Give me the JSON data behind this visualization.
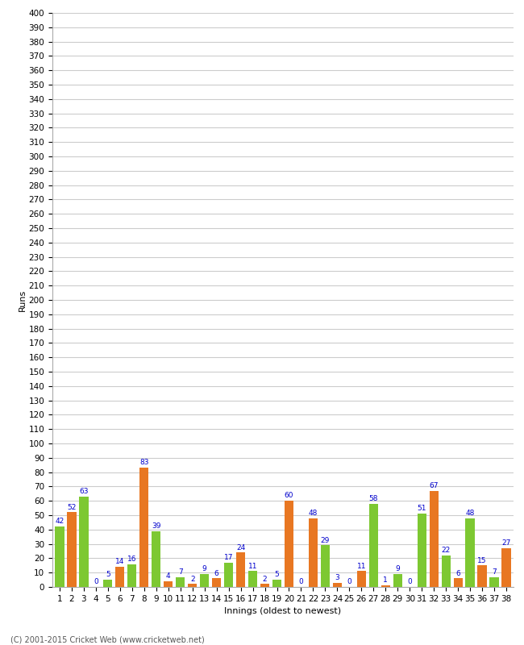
{
  "innings": [
    1,
    2,
    3,
    4,
    5,
    6,
    7,
    8,
    9,
    10,
    11,
    12,
    13,
    14,
    15,
    16,
    17,
    18,
    19,
    20,
    21,
    22,
    23,
    24,
    25,
    26,
    27,
    28,
    29,
    30,
    31,
    32,
    33,
    34,
    35,
    36,
    37,
    38
  ],
  "values": [
    42,
    52,
    63,
    0,
    5,
    14,
    16,
    83,
    39,
    4,
    7,
    2,
    9,
    6,
    17,
    24,
    11,
    2,
    5,
    60,
    0,
    48,
    29,
    3,
    0,
    11,
    58,
    1,
    9,
    0,
    51,
    67,
    22,
    6,
    48,
    15,
    7,
    27
  ],
  "colors": [
    "#7dc832",
    "#e87722",
    "#7dc832",
    "#e87722",
    "#7dc832",
    "#e87722",
    "#7dc832",
    "#e87722",
    "#7dc832",
    "#e87722",
    "#7dc832",
    "#e87722",
    "#7dc832",
    "#e87722",
    "#7dc832",
    "#e87722",
    "#7dc832",
    "#e87722",
    "#7dc832",
    "#e87722",
    "#7dc832",
    "#e87722",
    "#7dc832",
    "#e87722",
    "#7dc832",
    "#e87722",
    "#7dc832",
    "#e87722",
    "#7dc832",
    "#e87722",
    "#7dc832",
    "#e87722",
    "#7dc832",
    "#e87722",
    "#7dc832",
    "#e87722",
    "#7dc832",
    "#e87722"
  ],
  "xlabel": "Innings (oldest to newest)",
  "ylabel": "Runs",
  "ylim": [
    0,
    400
  ],
  "ytick_step": 10,
  "footer": "(C) 2001-2015 Cricket Web (www.cricketweb.net)",
  "label_color": "#0000cc",
  "label_fontsize": 6.5,
  "tick_fontsize": 7.5,
  "xlabel_fontsize": 8,
  "ylabel_fontsize": 8,
  "background_color": "#ffffff",
  "grid_color": "#cccccc",
  "bar_width": 0.75
}
